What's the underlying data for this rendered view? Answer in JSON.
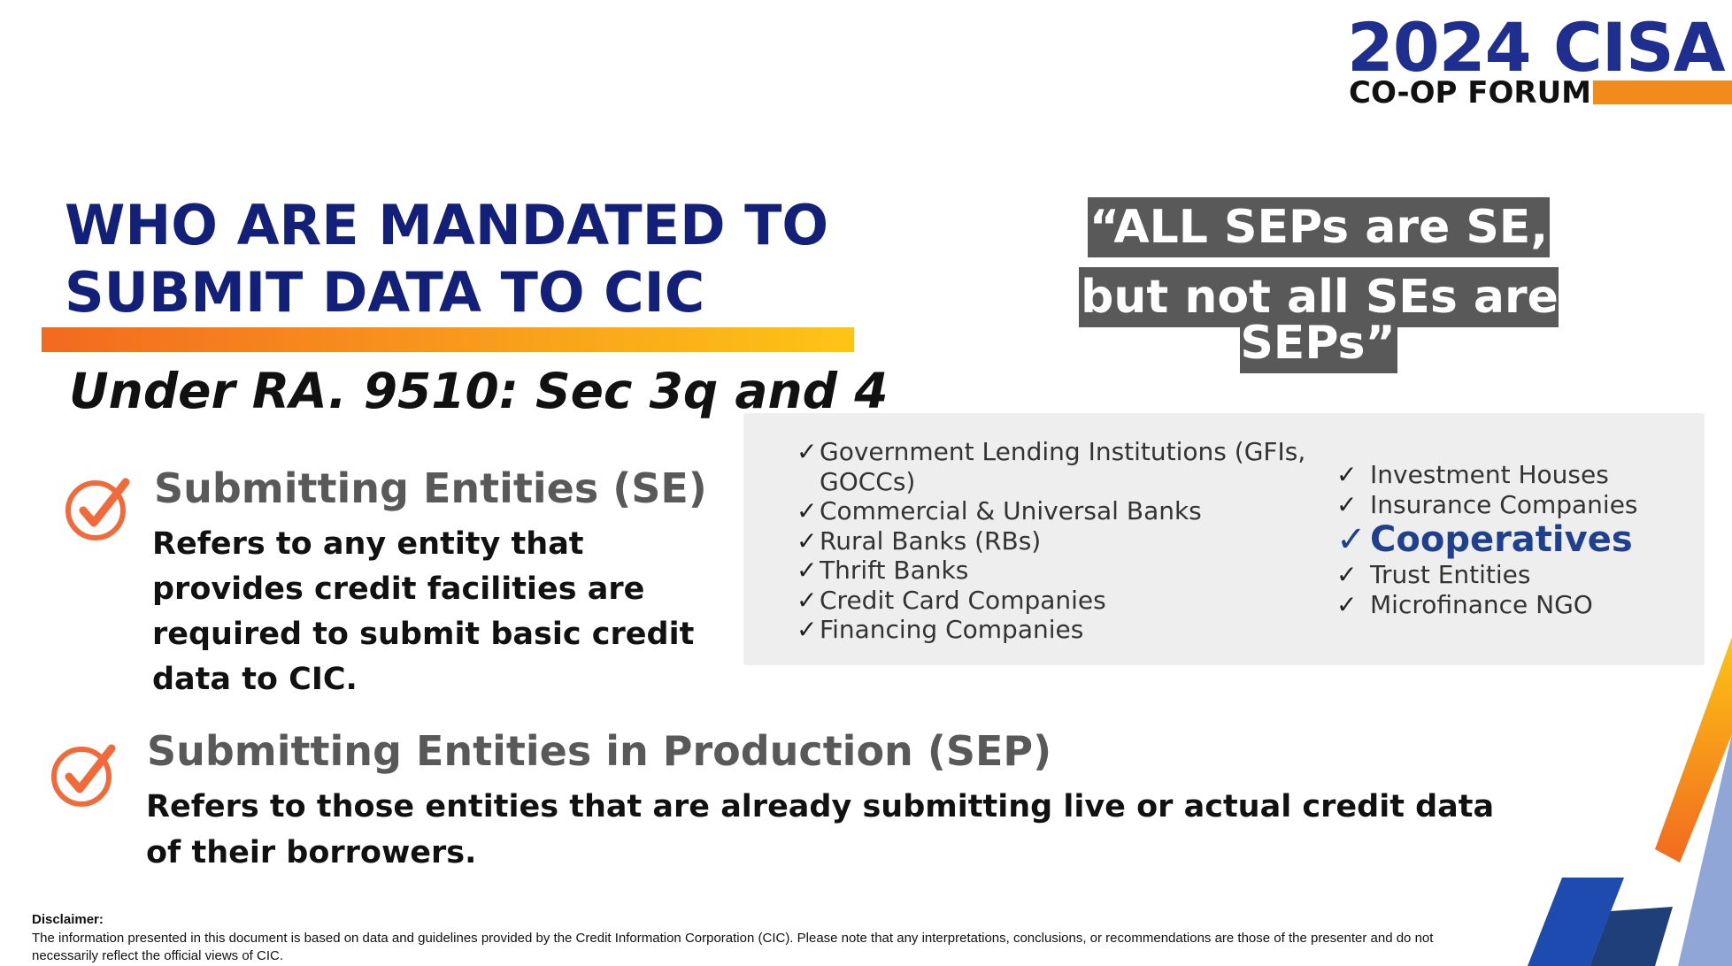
{
  "logo": {
    "main": "2024 CISA",
    "sub": "CO-OP FORUM"
  },
  "title": {
    "line1": "WHO ARE MANDATED TO",
    "line2": "SUBMIT DATA TO CIC"
  },
  "subtitle": "Under RA. 9510: Sec 3q and 4",
  "quote": {
    "line1": "“ALL SEPs are SE,",
    "line2": "but not all SEs are SEPs”"
  },
  "se": {
    "heading": "Submitting Entities (SE)",
    "description": "Refers to any entity that  provides credit facilities are required to submit basic credit data to CIC."
  },
  "entities_left": [
    "Government Lending Institutions (GFIs, GOCCs)",
    "Commercial & Universal Banks",
    "Rural Banks (RBs)",
    "Thrift Banks",
    "Credit Card Companies",
    "Financing Companies"
  ],
  "entities_right": [
    "Investment Houses",
    "Insurance Companies",
    "Cooperatives",
    "Trust Entities",
    "Microfinance NGO"
  ],
  "check_glyph": "✓",
  "sep": {
    "heading": "Submitting Entities in Production (SEP)",
    "description": "Refers to those entities that are already submitting live or actual credit data of their borrowers."
  },
  "disclaimer": {
    "label": "Disclaimer:",
    "text": "The information presented in this document is based on data and guidelines provided by the Credit Information Corporation (CIC). Please note that any interpretations, conclusions, or recommendations are those of the presenter and do not necessarily reflect the official views of CIC."
  },
  "colors": {
    "navy": "#13207a",
    "orange": "#f26a1f",
    "gray_text": "#595959",
    "coop_blue": "#1f3f8f"
  },
  "icons": {
    "check_circle": "check-circle-icon"
  }
}
